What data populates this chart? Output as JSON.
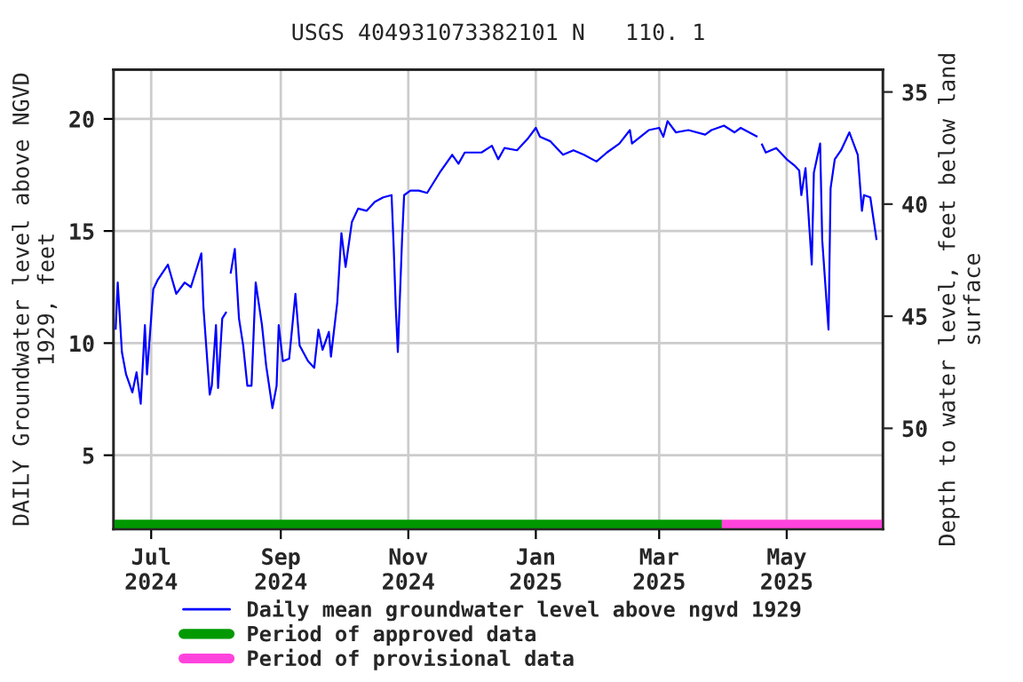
{
  "chart_data": {
    "type": "line",
    "title": "USGS 404931073382101 N   110. 1",
    "ylabel": "DAILY Groundwater level above NGVD\n1929, feet",
    "y2label": "Depth to water level, feet below land\nsurface",
    "series": [
      {
        "name": "Daily mean groundwater level above ngvd 1929",
        "color": "#0000ff",
        "x": [
          "2024-06-14",
          "2024-06-15",
          "2024-06-17",
          "2024-06-19",
          "2024-06-22",
          "2024-06-24",
          "2024-06-26",
          "2024-06-28",
          "2024-06-29",
          "2024-07-02",
          "2024-07-04",
          "2024-07-09",
          "2024-07-13",
          "2024-07-17",
          "2024-07-20",
          "2024-07-25",
          "2024-07-26",
          "2024-07-29",
          "2024-07-30",
          "2024-08-01",
          "2024-08-02",
          "2024-08-04",
          "2024-08-06",
          "2024-08-07",
          "2024-08-08",
          "2024-08-10",
          "2024-08-12",
          "2024-08-14",
          "2024-08-16",
          "2024-08-18",
          "2024-08-20",
          "2024-08-23",
          "2024-08-25",
          "2024-08-28",
          "2024-08-30",
          "2024-08-31",
          "2024-09-02",
          "2024-09-05",
          "2024-09-08",
          "2024-09-10",
          "2024-09-14",
          "2024-09-17",
          "2024-09-19",
          "2024-09-21",
          "2024-09-24",
          "2024-09-25",
          "2024-09-28",
          "2024-09-30",
          "2024-10-02",
          "2024-10-05",
          "2024-10-08",
          "2024-10-12",
          "2024-10-16",
          "2024-10-20",
          "2024-10-24",
          "2024-10-25",
          "2024-10-26",
          "2024-10-27",
          "2024-10-29",
          "2024-10-30",
          "2024-11-02",
          "2024-11-06",
          "2024-11-10",
          "2024-11-16",
          "2024-11-22",
          "2024-11-25",
          "2024-11-28",
          "2024-12-06",
          "2024-12-11",
          "2024-12-14",
          "2024-12-17",
          "2024-12-23",
          "2024-12-28",
          "2025-01-01",
          "2025-01-03",
          "2025-01-08",
          "2025-01-14",
          "2025-01-19",
          "2025-01-24",
          "2025-01-30",
          "2025-02-04",
          "2025-02-10",
          "2025-02-15",
          "2025-02-16",
          "2025-02-24",
          "2025-03-01",
          "2025-03-03",
          "2025-03-05",
          "2025-03-09",
          "2025-03-15",
          "2025-03-23",
          "2025-03-26",
          "2025-04-01",
          "2025-04-06",
          "2025-04-09",
          "2025-04-17",
          "2025-04-18",
          "2025-04-19",
          "2025-04-21",
          "2025-04-26",
          "2025-05-01",
          "2025-05-05",
          "2025-05-07",
          "2025-05-08",
          "2025-05-10",
          "2025-05-13",
          "2025-05-14",
          "2025-05-17",
          "2025-05-18",
          "2025-05-21",
          "2025-05-22",
          "2025-05-24",
          "2025-05-27",
          "2025-05-31",
          "2025-06-04",
          "2025-06-06",
          "2025-06-07",
          "2025-06-10",
          "2025-06-13"
        ],
        "values": [
          10.6,
          12.7,
          9.6,
          8.6,
          7.8,
          8.7,
          7.3,
          10.8,
          8.6,
          12.4,
          12.8,
          13.5,
          12.2,
          12.7,
          12.5,
          14.0,
          11.6,
          7.7,
          8.1,
          10.8,
          8.0,
          11.1,
          11.4,
          null,
          13.1,
          14.2,
          11.1,
          9.9,
          8.1,
          8.1,
          12.7,
          10.8,
          9.0,
          7.1,
          8.1,
          10.8,
          9.2,
          9.3,
          12.2,
          9.9,
          9.2,
          8.9,
          10.6,
          9.7,
          10.5,
          9.4,
          11.8,
          14.9,
          13.4,
          15.4,
          16.0,
          15.9,
          16.3,
          16.5,
          16.6,
          14.3,
          11.6,
          9.6,
          14.6,
          16.6,
          16.8,
          16.8,
          16.7,
          17.6,
          18.4,
          18.0,
          18.5,
          18.5,
          18.8,
          18.2,
          18.7,
          18.6,
          19.1,
          19.6,
          19.2,
          19.0,
          18.4,
          18.6,
          18.4,
          18.1,
          18.5,
          18.9,
          19.5,
          18.9,
          19.5,
          19.6,
          19.2,
          19.9,
          19.4,
          19.5,
          19.3,
          19.5,
          19.7,
          19.4,
          19.6,
          19.2,
          null,
          18.9,
          18.5,
          18.7,
          18.2,
          17.9,
          17.7,
          16.6,
          17.8,
          13.5,
          17.6,
          18.9,
          14.6,
          10.6,
          16.9,
          18.2,
          18.6,
          19.4,
          18.4,
          15.9,
          16.6,
          16.5,
          14.6
        ]
      },
      {
        "name": "Period of approved data",
        "color": "#009900",
        "x": [
          "2024-06-13",
          "2025-03-31"
        ],
        "values": [
          1.9,
          1.9
        ]
      },
      {
        "name": "Period of provisional data",
        "color": "#ff44dd",
        "x": [
          "2025-03-31",
          "2025-06-16"
        ],
        "values": [
          1.9,
          1.9
        ]
      }
    ],
    "xlim": [
      "2024-06-13",
      "2025-06-16"
    ],
    "xticks": [
      {
        "value": "2024-07-01",
        "label": "Jul\n2024"
      },
      {
        "value": "2024-09-01",
        "label": "Sep\n2024"
      },
      {
        "value": "2024-11-01",
        "label": "Nov\n2024"
      },
      {
        "value": "2025-01-01",
        "label": "Jan\n2025"
      },
      {
        "value": "2025-03-01",
        "label": "Mar\n2025"
      },
      {
        "value": "2025-05-01",
        "label": "May\n2025"
      }
    ],
    "ylim": [
      1.7,
      22.2
    ],
    "yticks": [
      5,
      10,
      15,
      20
    ],
    "y2lim": [
      54.5,
      34.0
    ],
    "y2ticks": [
      35,
      40,
      45,
      50
    ],
    "grid": true,
    "legend": "bottom"
  }
}
